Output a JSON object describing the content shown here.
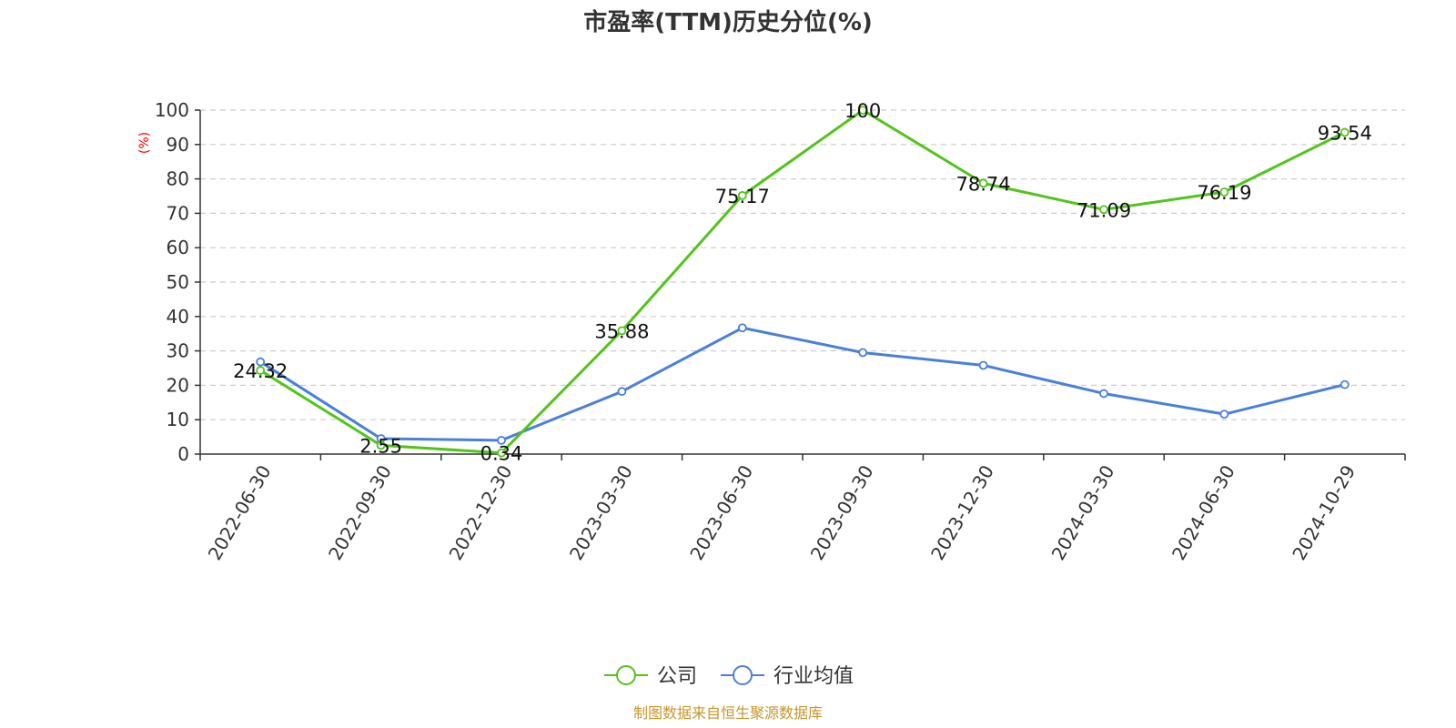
{
  "chart_data": {
    "type": "line",
    "title": "市盈率(TTM)历史分位(%)",
    "ylabel": "(%)",
    "ylim": [
      0,
      100
    ],
    "yticks": [
      0,
      10,
      20,
      30,
      40,
      50,
      60,
      70,
      80,
      90,
      100
    ],
    "grid": true,
    "legend_position": "bottom-center",
    "categories": [
      "2022-06-30",
      "2022-09-30",
      "2022-12-30",
      "2023-03-30",
      "2023-06-30",
      "2023-09-30",
      "2023-12-30",
      "2024-03-30",
      "2024-06-30",
      "2024-10-29"
    ],
    "series": [
      {
        "name": "公司",
        "color": "#52c41a",
        "values": [
          24.32,
          2.55,
          0.34,
          35.88,
          75.17,
          100,
          78.74,
          71.09,
          76.19,
          93.54
        ],
        "labels": [
          "24.32",
          "2.55",
          "0.34",
          "35.88",
          "75.17",
          "100",
          "78.74",
          "71.09",
          "76.19",
          "93.54"
        ]
      },
      {
        "name": "行业均值",
        "color": "#4a7fdb",
        "values": [
          26.8,
          4.5,
          4.0,
          18.2,
          36.7,
          29.5,
          25.8,
          17.6,
          11.6,
          20.2
        ]
      }
    ],
    "source": "制图数据来自恒生聚源数据库",
    "ylabel_color": "#ff0000",
    "source_color": "#c8962a"
  }
}
